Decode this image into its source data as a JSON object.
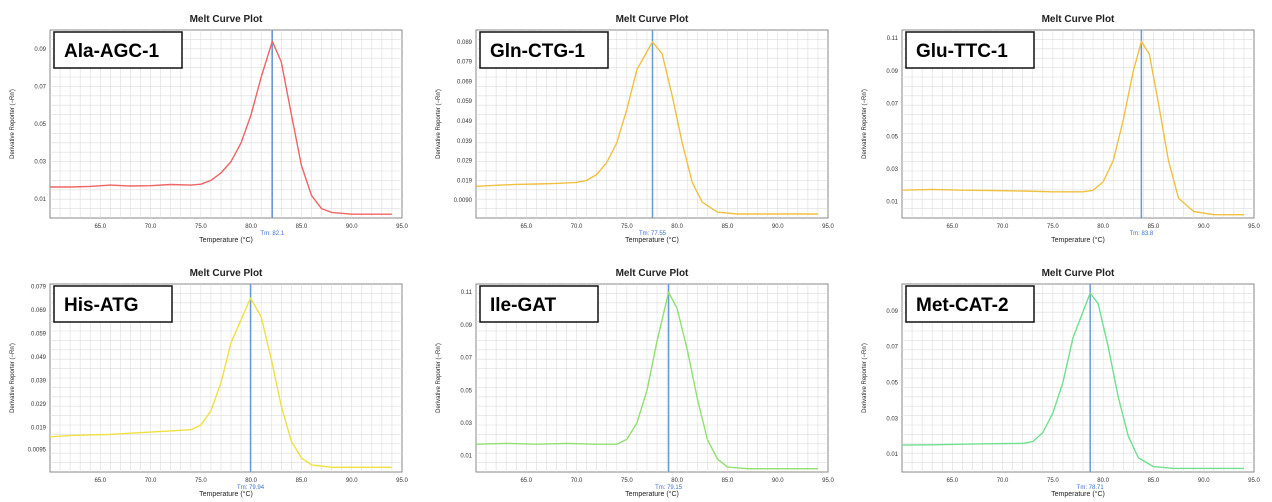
{
  "chart_data": [
    {
      "type": "line",
      "title": "Melt Curve Plot",
      "label": "Ala-AGC-1",
      "xlabel": "Temperature (°C)",
      "ylabel": "Derivative Reporter (−Rn')",
      "xlim": [
        60.0,
        95.0
      ],
      "ylim": [
        0.0,
        0.1
      ],
      "xticks": [
        "65.0",
        "70.0",
        "75.0",
        "80.0",
        "85.0",
        "90.0",
        "95.0"
      ],
      "yticks": [
        "0.01",
        "0.03",
        "0.05",
        "0.07",
        "0.09"
      ],
      "ytick_values": [
        0.01,
        0.03,
        0.05,
        0.07,
        0.09
      ],
      "tm_label": "Tm: 82.1",
      "tm": 82.1,
      "color": "#f06464",
      "series": [
        {
          "x": [
            60,
            62,
            64,
            66,
            68,
            70,
            72,
            74,
            75,
            76,
            77,
            78,
            79,
            80,
            81,
            82.1,
            83,
            84,
            85,
            86,
            87,
            88,
            90,
            92,
            94
          ],
          "y": [
            0.0165,
            0.0165,
            0.0168,
            0.0175,
            0.017,
            0.0172,
            0.0178,
            0.0175,
            0.018,
            0.02,
            0.024,
            0.03,
            0.04,
            0.055,
            0.075,
            0.094,
            0.083,
            0.055,
            0.028,
            0.012,
            0.005,
            0.003,
            0.002,
            0.002,
            0.002
          ]
        }
      ]
    },
    {
      "type": "line",
      "title": "Melt Curve Plot",
      "label": "Gln-CTG-1",
      "xlabel": "Temperature (°C)",
      "ylabel": "Derivative Reporter (−Rn')",
      "xlim": [
        60.0,
        95.0
      ],
      "ylim": [
        0.0,
        0.095
      ],
      "xticks": [
        "65.0",
        "70.0",
        "75.0",
        "80.0",
        "85.0",
        "90.0",
        "95.0"
      ],
      "yticks": [
        "0.0090",
        "0.019",
        "0.029",
        "0.039",
        "0.049",
        "0.059",
        "0.069",
        "0.079",
        "0.089"
      ],
      "ytick_values": [
        0.009,
        0.019,
        0.029,
        0.039,
        0.049,
        0.059,
        0.069,
        0.079,
        0.089
      ],
      "tm_label": "Tm: 77.55",
      "tm": 77.55,
      "color": "#f0c040",
      "series": [
        {
          "x": [
            60,
            62,
            64,
            66,
            68,
            70,
            71,
            72,
            73,
            74,
            75,
            76,
            77.55,
            78.5,
            79.5,
            80.5,
            81.5,
            82.5,
            84,
            86,
            90,
            94
          ],
          "y": [
            0.016,
            0.0165,
            0.017,
            0.0172,
            0.0175,
            0.018,
            0.019,
            0.022,
            0.028,
            0.038,
            0.055,
            0.075,
            0.089,
            0.083,
            0.062,
            0.038,
            0.018,
            0.008,
            0.003,
            0.002,
            0.002,
            0.002
          ]
        }
      ]
    },
    {
      "type": "line",
      "title": "Melt Curve Plot",
      "label": "Glu-TTC-1",
      "xlabel": "Temperature (°C)",
      "ylabel": "Derivative Reporter (−Rn')",
      "xlim": [
        60.0,
        95.0
      ],
      "ylim": [
        0.0,
        0.115
      ],
      "xticks": [
        "65.0",
        "70.0",
        "75.0",
        "80.0",
        "85.0",
        "90.0",
        "95.0"
      ],
      "yticks": [
        "0.01",
        "0.03",
        "0.05",
        "0.07",
        "0.09",
        "0.11"
      ],
      "ytick_values": [
        0.01,
        0.03,
        0.05,
        0.07,
        0.09,
        0.11
      ],
      "tm_label": "Tm: 83.8",
      "tm": 83.8,
      "color": "#f0c040",
      "series": [
        {
          "x": [
            60,
            63,
            66,
            69,
            72,
            75,
            78,
            79,
            80,
            81,
            82,
            83,
            83.8,
            84.6,
            85.5,
            86.5,
            87.5,
            89,
            91,
            94
          ],
          "y": [
            0.017,
            0.0175,
            0.017,
            0.0168,
            0.0165,
            0.016,
            0.016,
            0.017,
            0.022,
            0.035,
            0.06,
            0.09,
            0.108,
            0.1,
            0.07,
            0.035,
            0.012,
            0.004,
            0.002,
            0.002
          ]
        }
      ]
    },
    {
      "type": "line",
      "title": "Melt Curve Plot",
      "label": "His-ATG",
      "xlabel": "Temperature (°C)",
      "ylabel": "Derivative Reporter (−Rn')",
      "xlim": [
        60.0,
        95.0
      ],
      "ylim": [
        0.0,
        0.08
      ],
      "xticks": [
        "65.0",
        "70.0",
        "75.0",
        "80.0",
        "85.0",
        "90.0",
        "95.0"
      ],
      "yticks": [
        "0.0095",
        "0.019",
        "0.029",
        "0.039",
        "0.049",
        "0.059",
        "0.069",
        "0.079"
      ],
      "ytick_values": [
        0.0095,
        0.019,
        0.029,
        0.039,
        0.049,
        0.059,
        0.069,
        0.079
      ],
      "tm_label": "Tm: 79.94",
      "tm": 79.94,
      "color": "#f0e040",
      "series": [
        {
          "x": [
            60,
            62,
            64,
            66,
            68,
            70,
            72,
            74,
            75,
            76,
            77,
            78,
            79.94,
            81,
            82,
            83,
            84,
            85,
            86,
            88,
            91,
            94
          ],
          "y": [
            0.015,
            0.0155,
            0.0158,
            0.016,
            0.0165,
            0.017,
            0.0175,
            0.018,
            0.02,
            0.026,
            0.038,
            0.055,
            0.074,
            0.066,
            0.048,
            0.028,
            0.013,
            0.006,
            0.003,
            0.002,
            0.002,
            0.002
          ]
        }
      ]
    },
    {
      "type": "line",
      "title": "Melt Curve Plot",
      "label": "Ile-GAT",
      "xlabel": "Temperature (°C)",
      "ylabel": "Derivative Reporter (−Rn')",
      "xlim": [
        60.0,
        95.0
      ],
      "ylim": [
        0.0,
        0.115
      ],
      "xticks": [
        "65.0",
        "70.0",
        "75.0",
        "80.0",
        "85.0",
        "90.0",
        "95.0"
      ],
      "yticks": [
        "0.01",
        "0.03",
        "0.05",
        "0.07",
        "0.09",
        "0.11"
      ],
      "ytick_values": [
        0.01,
        0.03,
        0.05,
        0.07,
        0.09,
        0.11
      ],
      "tm_label": "Tm: 79.15",
      "tm": 79.15,
      "color": "#90e070",
      "series": [
        {
          "x": [
            60,
            63,
            66,
            69,
            72,
            74,
            75,
            76,
            77,
            78,
            79.15,
            80,
            81,
            82,
            83,
            84,
            85,
            87,
            90,
            94
          ],
          "y": [
            0.017,
            0.0175,
            0.017,
            0.0175,
            0.017,
            0.017,
            0.02,
            0.03,
            0.05,
            0.08,
            0.11,
            0.1,
            0.075,
            0.045,
            0.02,
            0.008,
            0.003,
            0.002,
            0.002,
            0.002
          ]
        }
      ]
    },
    {
      "type": "line",
      "title": "Melt Curve Plot",
      "label": "Met-CAT-2",
      "xlabel": "Temperature (°C)",
      "ylabel": "Derivative Reporter (−Rn')",
      "xlim": [
        60.0,
        95.0
      ],
      "ylim": [
        0.0,
        0.105
      ],
      "xticks": [
        "65.0",
        "70.0",
        "75.0",
        "80.0",
        "85.0",
        "90.0",
        "95.0"
      ],
      "yticks": [
        "0.01",
        "0.03",
        "0.05",
        "0.07",
        "0.09"
      ],
      "ytick_values": [
        0.01,
        0.03,
        0.05,
        0.07,
        0.09
      ],
      "tm_label": "Tm: 78.71",
      "tm": 78.71,
      "color": "#70e090",
      "series": [
        {
          "x": [
            60,
            63,
            66,
            69,
            72,
            73,
            74,
            75,
            76,
            77,
            78.71,
            79.5,
            80.5,
            81.5,
            82.5,
            83.5,
            85,
            87,
            90,
            94
          ],
          "y": [
            0.015,
            0.0152,
            0.0155,
            0.0158,
            0.016,
            0.017,
            0.022,
            0.033,
            0.05,
            0.075,
            0.1,
            0.094,
            0.07,
            0.042,
            0.02,
            0.008,
            0.003,
            0.002,
            0.002,
            0.002
          ]
        }
      ]
    }
  ]
}
